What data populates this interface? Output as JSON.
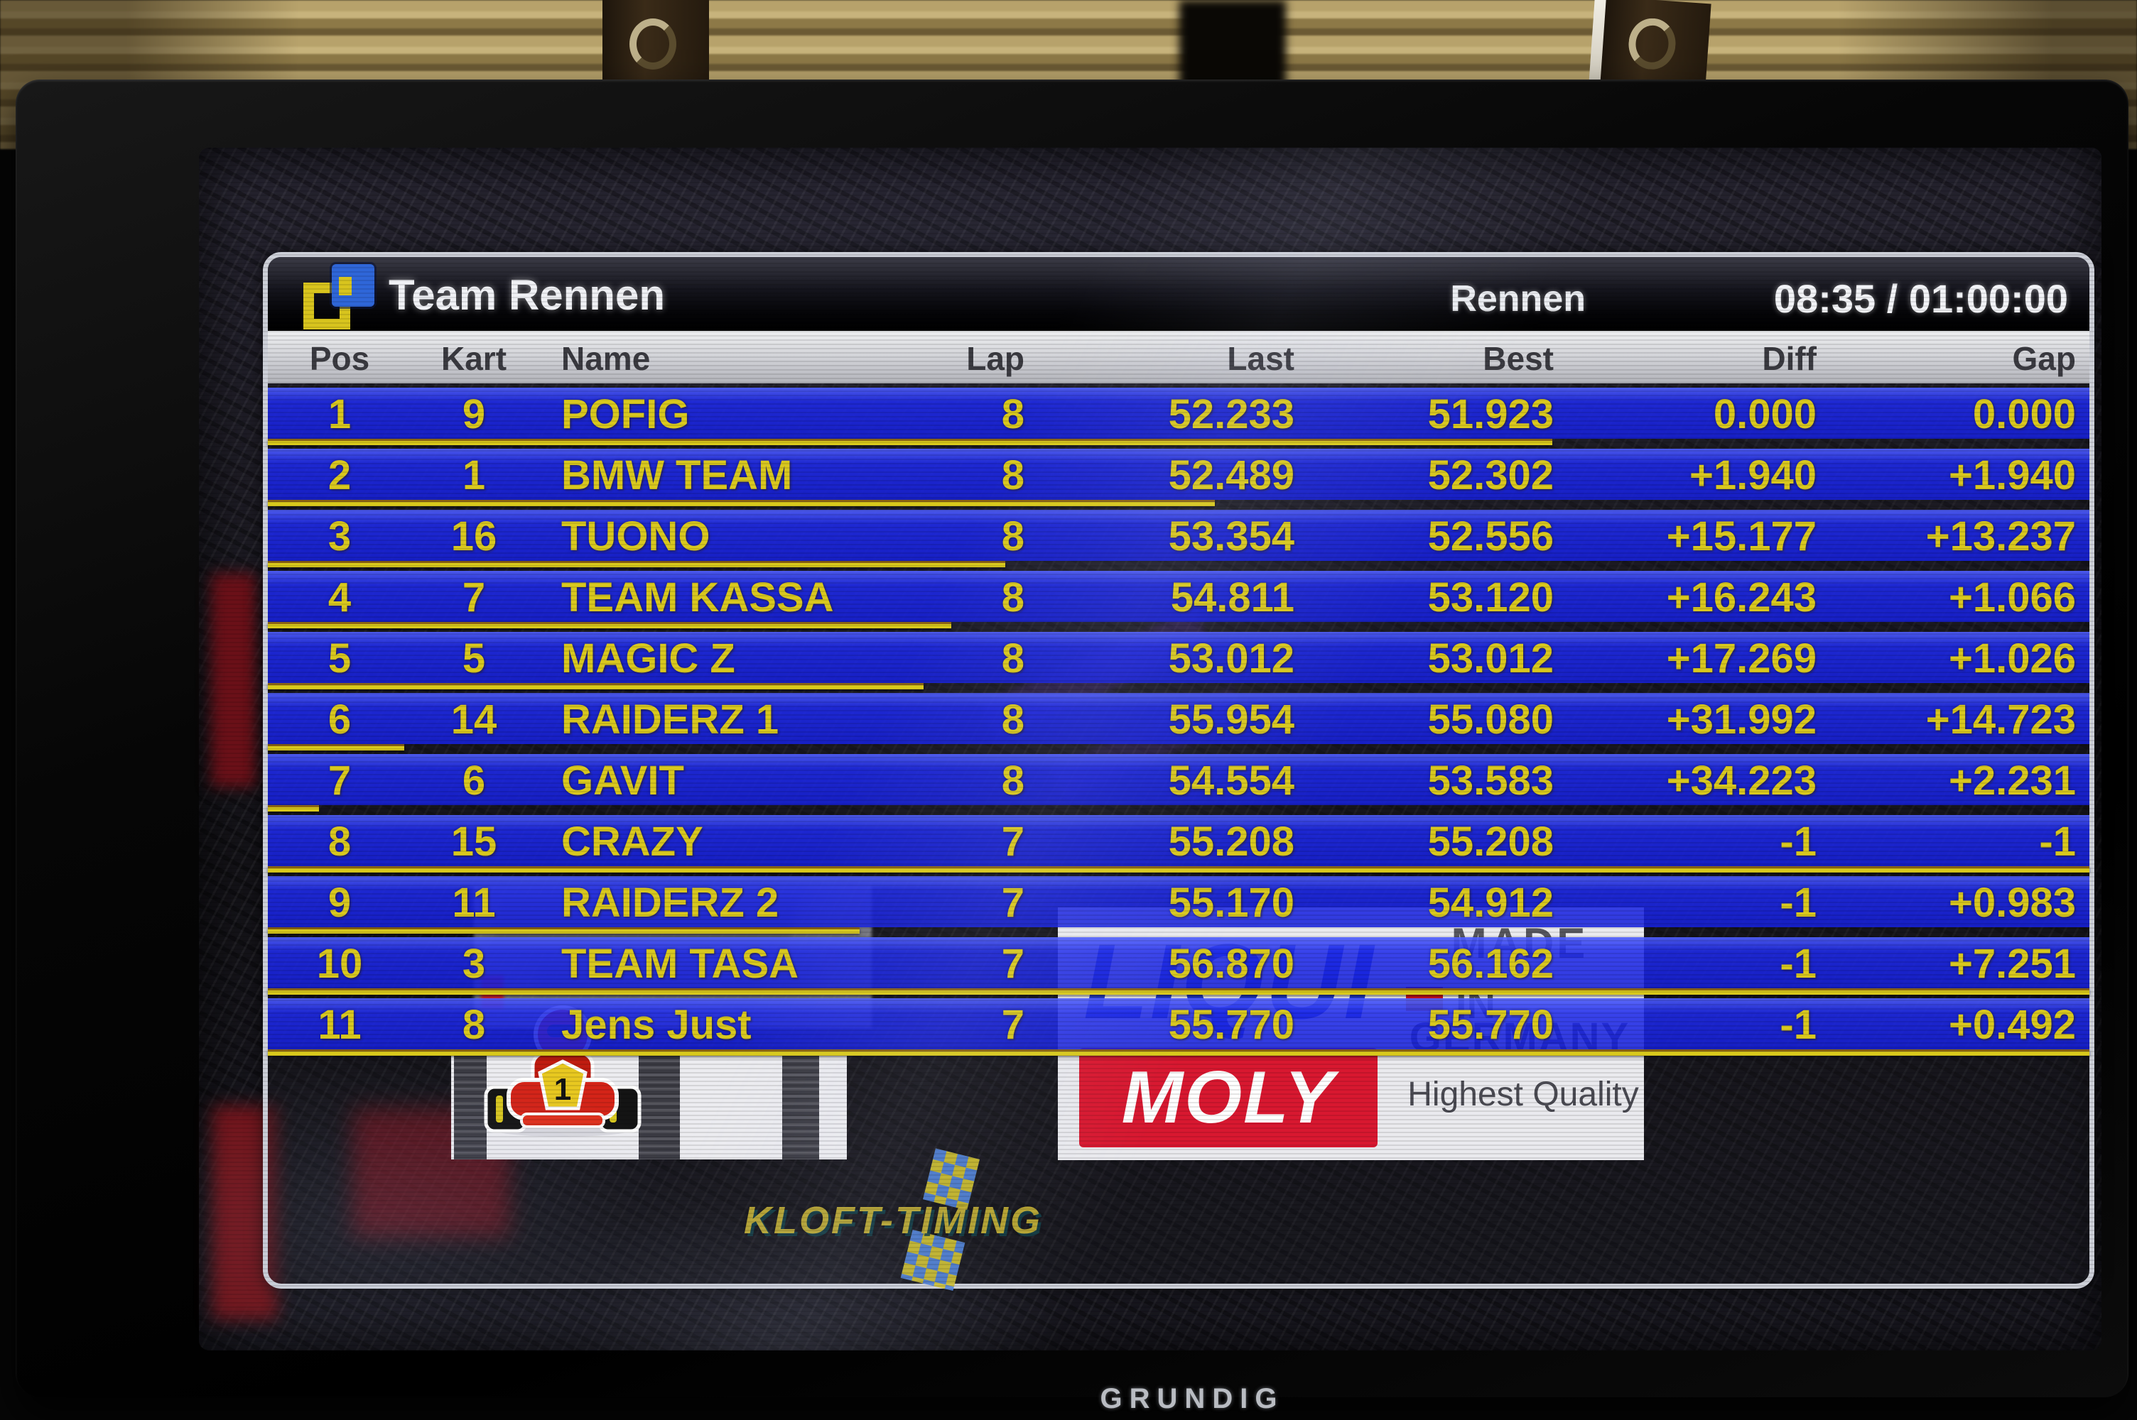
{
  "tv": {
    "brand": "GRUNDIG"
  },
  "window": {
    "title": "Team Rennen",
    "session_label": "Rennen",
    "race_clock": "08:35 / 01:00:00"
  },
  "table": {
    "columns": [
      "Pos",
      "Kart",
      "Name",
      "Lap",
      "Last",
      "Best",
      "Diff",
      "Gap"
    ],
    "rows": [
      {
        "pos": "1",
        "kart": "9",
        "name": "POFIG",
        "lap": "8",
        "last": "52.233",
        "best": "51.923",
        "diff": "0.000",
        "gap": "0.000",
        "progress": 0.705
      },
      {
        "pos": "2",
        "kart": "1",
        "name": "BMW TEAM",
        "lap": "8",
        "last": "52.489",
        "best": "52.302",
        "diff": "+1.940",
        "gap": "+1.940",
        "progress": 0.52
      },
      {
        "pos": "3",
        "kart": "16",
        "name": "TUONO",
        "lap": "8",
        "last": "53.354",
        "best": "52.556",
        "diff": "+15.177",
        "gap": "+13.237",
        "progress": 0.405
      },
      {
        "pos": "4",
        "kart": "7",
        "name": "TEAM KASSA",
        "lap": "8",
        "last": "54.811",
        "best": "53.120",
        "diff": "+16.243",
        "gap": "+1.066",
        "progress": 0.375
      },
      {
        "pos": "5",
        "kart": "5",
        "name": "MAGIC Z",
        "lap": "8",
        "last": "53.012",
        "best": "53.012",
        "diff": "+17.269",
        "gap": "+1.026",
        "progress": 0.36
      },
      {
        "pos": "6",
        "kart": "14",
        "name": "RAIDERZ 1",
        "lap": "8",
        "last": "55.954",
        "best": "55.080",
        "diff": "+31.992",
        "gap": "+14.723",
        "progress": 0.075
      },
      {
        "pos": "7",
        "kart": "6",
        "name": "GAVIT",
        "lap": "8",
        "last": "54.554",
        "best": "53.583",
        "diff": "+34.223",
        "gap": "+2.231",
        "progress": 0.028
      },
      {
        "pos": "8",
        "kart": "15",
        "name": "CRAZY",
        "lap": "7",
        "last": "55.208",
        "best": "55.208",
        "diff": "-1",
        "gap": "-1",
        "progress": 1
      },
      {
        "pos": "9",
        "kart": "11",
        "name": "RAIDERZ 2",
        "lap": "7",
        "last": "55.170",
        "best": "54.912",
        "diff": "-1",
        "gap": "+0.983",
        "progress": 0.325
      },
      {
        "pos": "10",
        "kart": "3",
        "name": "TEAM TASA",
        "lap": "7",
        "last": "56.870",
        "best": "56.162",
        "diff": "-1",
        "gap": "+7.251",
        "progress": 1
      },
      {
        "pos": "11",
        "kart": "8",
        "name": "Jens Just",
        "lap": "7",
        "last": "55.770",
        "best": "55.770",
        "diff": "-1",
        "gap": "+0.492",
        "progress": 1
      }
    ]
  },
  "footer": {
    "timing_brand": "KLOFT-TIMING"
  },
  "sponsor": {
    "liqui": "LIQUI",
    "moly": "MOLY",
    "made": "MADE",
    "in": "IN",
    "germany": "GERMANY",
    "quality": "Highest Quality",
    "kart_number": "1"
  },
  "colors": {
    "row_blue": "#2334ee",
    "accent_yellow": "#d9c81f",
    "header_gray": "#d7d8dc",
    "title_bar": "#0b0b12"
  }
}
